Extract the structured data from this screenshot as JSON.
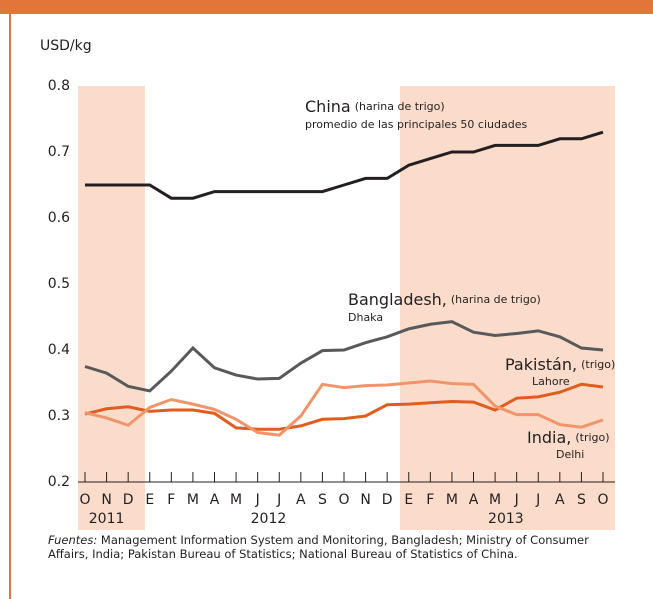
{
  "chart_data": {
    "type": "line",
    "y_label": "USD/kg",
    "categories": [
      "O",
      "N",
      "D",
      "E",
      "F",
      "M",
      "A",
      "M",
      "J",
      "J",
      "A",
      "S",
      "O",
      "N",
      "D",
      "E",
      "F",
      "M",
      "A",
      "M",
      "J",
      "J",
      "A",
      "S",
      "O"
    ],
    "years": [
      "2011",
      "2012",
      "2013"
    ],
    "ylim": [
      0.2,
      0.8
    ],
    "yticks": [
      0.2,
      0.3,
      0.4,
      0.5,
      0.6,
      0.7,
      0.8
    ],
    "series": [
      {
        "name": "China",
        "note": "(harina de trigo)",
        "sub": "promedio de las principales 50 ciudades",
        "color": "#231f20",
        "values": [
          0.65,
          0.65,
          0.65,
          0.65,
          0.63,
          0.63,
          0.64,
          0.64,
          0.64,
          0.64,
          0.64,
          0.64,
          0.65,
          0.66,
          0.66,
          0.68,
          0.69,
          0.7,
          0.7,
          0.71,
          0.71,
          0.71,
          0.72,
          0.72,
          0.73
        ]
      },
      {
        "name": "Bangladesh,",
        "note": "(harina de trigo)",
        "sub": "Dhaka",
        "color": "#58595b",
        "values": [
          0.375,
          0.365,
          0.345,
          0.338,
          0.368,
          0.403,
          0.373,
          0.362,
          0.356,
          0.357,
          0.38,
          0.399,
          0.4,
          0.411,
          0.42,
          0.432,
          0.439,
          0.443,
          0.427,
          0.422,
          0.425,
          0.429,
          0.42,
          0.403,
          0.4
        ]
      },
      {
        "name": "Pakistán,",
        "note": "(trigo)",
        "sub": "Lahore",
        "color": "#e05d1f",
        "values": [
          0.303,
          0.311,
          0.314,
          0.307,
          0.309,
          0.309,
          0.304,
          0.282,
          0.28,
          0.28,
          0.285,
          0.295,
          0.296,
          0.3,
          0.317,
          0.318,
          0.32,
          0.322,
          0.321,
          0.309,
          0.327,
          0.329,
          0.336,
          0.348,
          0.344
        ]
      },
      {
        "name": "India,",
        "note": "(trigo)",
        "sub": "Delhi",
        "color": "#f0956a",
        "values": [
          0.305,
          0.297,
          0.286,
          0.313,
          0.325,
          0.318,
          0.31,
          0.295,
          0.275,
          0.271,
          0.3,
          0.348,
          0.343,
          0.346,
          0.347,
          0.35,
          0.353,
          0.349,
          0.348,
          0.315,
          0.302,
          0.302,
          0.287,
          0.283,
          0.294
        ]
      }
    ],
    "source_label": "Fuentes:",
    "source": "Management Information System and Monitoring, Bangladesh; Ministry of Consumer Affairs, India; Pakistan Bureau of Statistics; National Bureau of Statistics of China."
  }
}
